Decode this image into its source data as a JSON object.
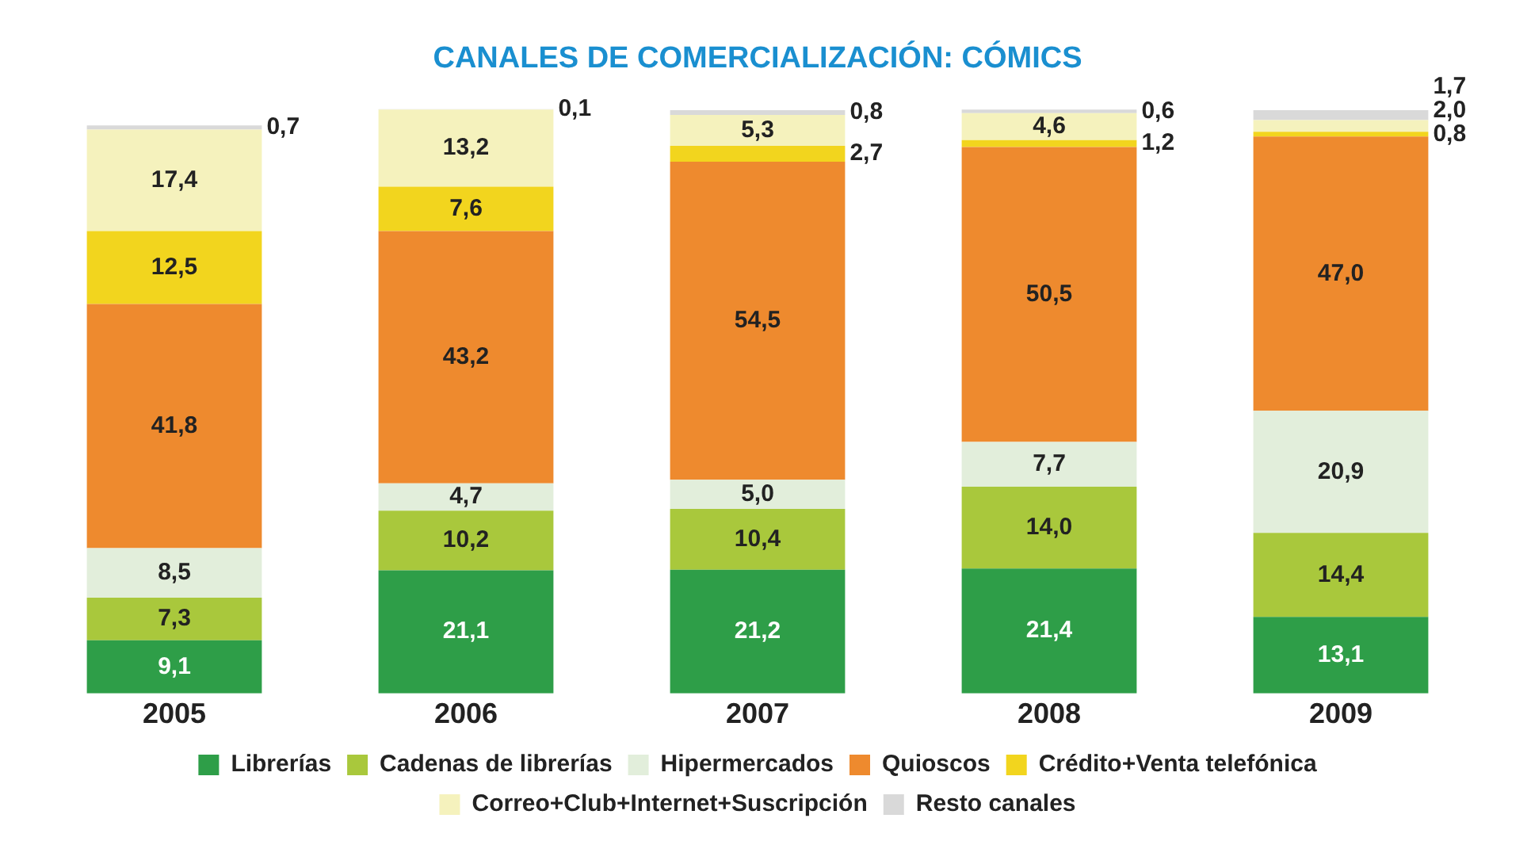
{
  "chart_data": {
    "type": "bar",
    "title": "CANALES DE COMERCIALIZACIÓN: CÓMICS",
    "stacked": true,
    "legend": "bottom",
    "tick_labels": "x",
    "categories": [
      "2005",
      "2006",
      "2007",
      "2008",
      "2009"
    ],
    "series": [
      {
        "name": "Librerías",
        "color": "#2e9e48",
        "values": [
          9.1,
          21.1,
          21.2,
          21.4,
          13.1
        ],
        "value_labels": [
          "9,1",
          "21,1",
          "21,2",
          "21,4",
          "13,1"
        ]
      },
      {
        "name": "Cadenas de librerías",
        "color": "#a9c83c",
        "values": [
          7.3,
          10.2,
          10.4,
          14.0,
          14.4
        ],
        "value_labels": [
          "7,3",
          "10,2",
          "10,4",
          "14,0",
          "14,4"
        ]
      },
      {
        "name": "Hipermercados",
        "color": "#e2eedb",
        "values": [
          8.5,
          4.7,
          5.0,
          7.7,
          20.9
        ],
        "value_labels": [
          "8,5",
          "4,7",
          "5,0",
          "7,7",
          "20,9"
        ]
      },
      {
        "name": "Quioscos",
        "color": "#ee8a2e",
        "values": [
          41.8,
          43.2,
          54.5,
          50.5,
          47.0
        ],
        "value_labels": [
          "41,8",
          "43,2",
          "54,5",
          "50,5",
          "47,0"
        ]
      },
      {
        "name": "Crédito+Venta telefónica",
        "color": "#f2d51e",
        "values": [
          12.5,
          7.6,
          2.7,
          1.2,
          0.8
        ],
        "value_labels": [
          "12,5",
          "7,6",
          "2,7",
          "1,2",
          "0,8"
        ]
      },
      {
        "name": "Correo+Club+Internet+Suscripción",
        "color": "#f5f2bd",
        "values": [
          17.4,
          13.2,
          5.3,
          4.6,
          2.0
        ],
        "value_labels": [
          "17,4",
          "13,2",
          "5,3",
          "4,6",
          "2,0"
        ]
      },
      {
        "name": "Resto canales",
        "color": "#d9d9d9",
        "values": [
          0.7,
          0.1,
          0.8,
          0.6,
          1.7
        ],
        "value_labels": [
          "0,7",
          "0,1",
          "0,8",
          "0,6",
          "1,7"
        ]
      }
    ]
  }
}
